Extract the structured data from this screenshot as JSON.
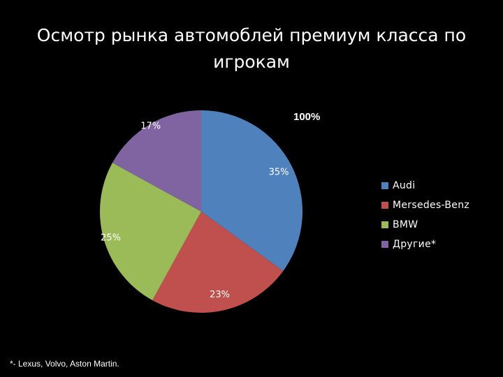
{
  "slide": {
    "title": "Осмотр рынка автомоблей премиум класса по игрокам",
    "total_label": "100%",
    "footnote": "*- Lexus, Volvo, Aston Martin."
  },
  "chart_data": {
    "type": "pie",
    "title": "Осмотр рынка автомоблей премиум класса по игрокам",
    "categories": [
      "Audi",
      "Mersedes-Benz",
      "BMW",
      "Другие*"
    ],
    "values": [
      35,
      23,
      25,
      17
    ],
    "data_labels": [
      "35%",
      "23%",
      "25%",
      "17%"
    ],
    "colors": [
      "#4F81BD",
      "#C0504D",
      "#9BBB59",
      "#8064A2"
    ],
    "legend_placement": "right",
    "start_angle_deg": 0,
    "direction": "clockwise"
  }
}
